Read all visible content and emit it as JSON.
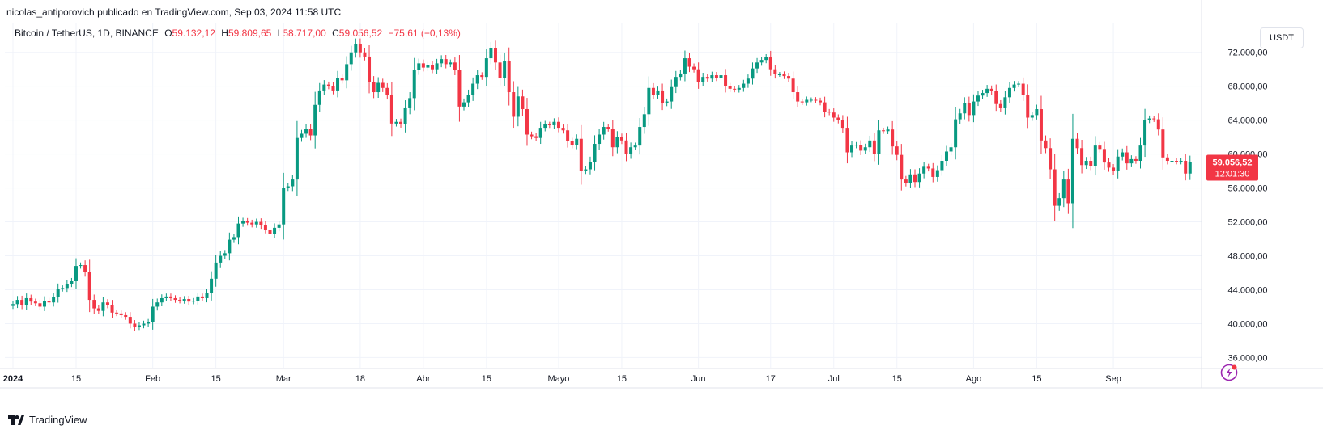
{
  "header": {
    "publisher": "nicolas_antiporovich publicado en TradingView.com, Sep 03, 2024 11:58 UTC"
  },
  "legend": {
    "symbol": "Bitcoin / TetherUS, 1D, BINANCE",
    "o_label": "O",
    "o_value": "59.132,12",
    "h_label": "H",
    "h_value": "59.809,65",
    "l_label": "L",
    "l_value": "58.717,00",
    "c_label": "C",
    "c_value": "59.056,52",
    "change": "−75,61 (−0,13%)"
  },
  "currency_button": "USDT",
  "price_tag": {
    "price": "59.056,52",
    "countdown": "12:01:30"
  },
  "footer": {
    "brand": "TradingView"
  },
  "colors": {
    "up": "#089981",
    "down": "#f23645",
    "grid": "#f0f3fa",
    "text": "#131722"
  },
  "chart_data": {
    "type": "candlestick",
    "interval": "1D",
    "y_ticks": [
      "36.000,00",
      "40.000,00",
      "44.000,00",
      "48.000,00",
      "52.000,00",
      "56.000,00",
      "60.000,00",
      "64.000,00",
      "68.000,00",
      "72.000,00"
    ],
    "y_tick_values": [
      36000,
      40000,
      44000,
      48000,
      52000,
      56000,
      60000,
      64000,
      68000,
      72000
    ],
    "ylim": [
      34800,
      75500
    ],
    "x_labels": [
      {
        "label": "2024",
        "day": 0
      },
      {
        "label": "15",
        "day": 14
      },
      {
        "label": "Feb",
        "day": 31
      },
      {
        "label": "15",
        "day": 45
      },
      {
        "label": "Mar",
        "day": 60
      },
      {
        "label": "18",
        "day": 77
      },
      {
        "label": "Abr",
        "day": 91
      },
      {
        "label": "15",
        "day": 105
      },
      {
        "label": "Mayo",
        "day": 121
      },
      {
        "label": "15",
        "day": 135
      },
      {
        "label": "Jun",
        "day": 152
      },
      {
        "label": "17",
        "day": 168
      },
      {
        "label": "Jul",
        "day": 182
      },
      {
        "label": "15",
        "day": 196
      },
      {
        "label": "Ago",
        "day": 213
      },
      {
        "label": "15",
        "day": 227
      },
      {
        "label": "Sep",
        "day": 244
      }
    ],
    "last_price": 59056.52,
    "closes": [
      42300,
      42800,
      42200,
      43000,
      42600,
      42400,
      42000,
      42700,
      42500,
      43100,
      44100,
      44200,
      44700,
      45000,
      46800,
      46900,
      46100,
      42800,
      41800,
      41500,
      42500,
      42200,
      41300,
      41200,
      41000,
      40800,
      40000,
      39600,
      39800,
      40000,
      40200,
      42000,
      42500,
      43000,
      43200,
      43000,
      42800,
      42700,
      42900,
      42600,
      42700,
      43200,
      43000,
      43600,
      45300,
      47200,
      48000,
      48300,
      49900,
      50200,
      51800,
      52100,
      51900,
      51700,
      52000,
      51600,
      51100,
      50600,
      51300,
      51700,
      56000,
      56200,
      57000,
      61900,
      62400,
      63000,
      62200,
      65800,
      67500,
      68200,
      68000,
      67500,
      69000,
      68700,
      70600,
      72000,
      73000,
      72000,
      71500,
      68500,
      67300,
      68400,
      67800,
      67000,
      63600,
      63800,
      63500,
      65400,
      66600,
      69900,
      70700,
      70200,
      70500,
      70000,
      70700,
      71200,
      70600,
      70800,
      69900,
      65600,
      66100,
      67000,
      68300,
      69300,
      69100,
      71300,
      72500,
      70800,
      69000,
      71000,
      67300,
      64400,
      66800,
      65300,
      62300,
      62100,
      61900,
      63100,
      63500,
      63400,
      63800,
      63100,
      62800,
      61500,
      61100,
      61800,
      58000,
      58200,
      59100,
      61200,
      62300,
      63200,
      63000,
      60800,
      62000,
      61600,
      60000,
      60800,
      61000,
      63200,
      64700,
      67800,
      67000,
      67500,
      66000,
      66200,
      67900,
      69100,
      69500,
      71300,
      70300,
      70000,
      68500,
      69100,
      68900,
      69300,
      69000,
      69300,
      68000,
      67700,
      67600,
      67800,
      68300,
      68900,
      70100,
      70800,
      71100,
      71400,
      70000,
      69400,
      69400,
      69200,
      68900,
      67300,
      66200,
      66100,
      66400,
      66400,
      66300,
      66100,
      65000,
      64900,
      64300,
      64000,
      63100,
      60200,
      61000,
      61100,
      60400,
      60800,
      61600,
      60000,
      62800,
      62700,
      62900,
      60900,
      59900,
      57000,
      56600,
      57600,
      56700,
      57700,
      58500,
      58300,
      57300,
      58100,
      59200,
      60300,
      60800,
      64100,
      64800,
      66000,
      64600,
      66200,
      66900,
      67200,
      67700,
      67400,
      65900,
      65400,
      66700,
      67800,
      68200,
      68300,
      67000,
      64300,
      64600,
      65300,
      61600,
      60700,
      58200,
      53900,
      54800,
      57000,
      54200,
      61800,
      60700,
      58700,
      59200,
      58600,
      61000,
      60600,
      59000,
      58400,
      58000,
      59700,
      60200,
      58900,
      59400,
      59200,
      61000,
      64000,
      64200,
      64100,
      62900,
      59600,
      59200,
      59200,
      59100,
      59200,
      57700,
      59056
    ]
  }
}
